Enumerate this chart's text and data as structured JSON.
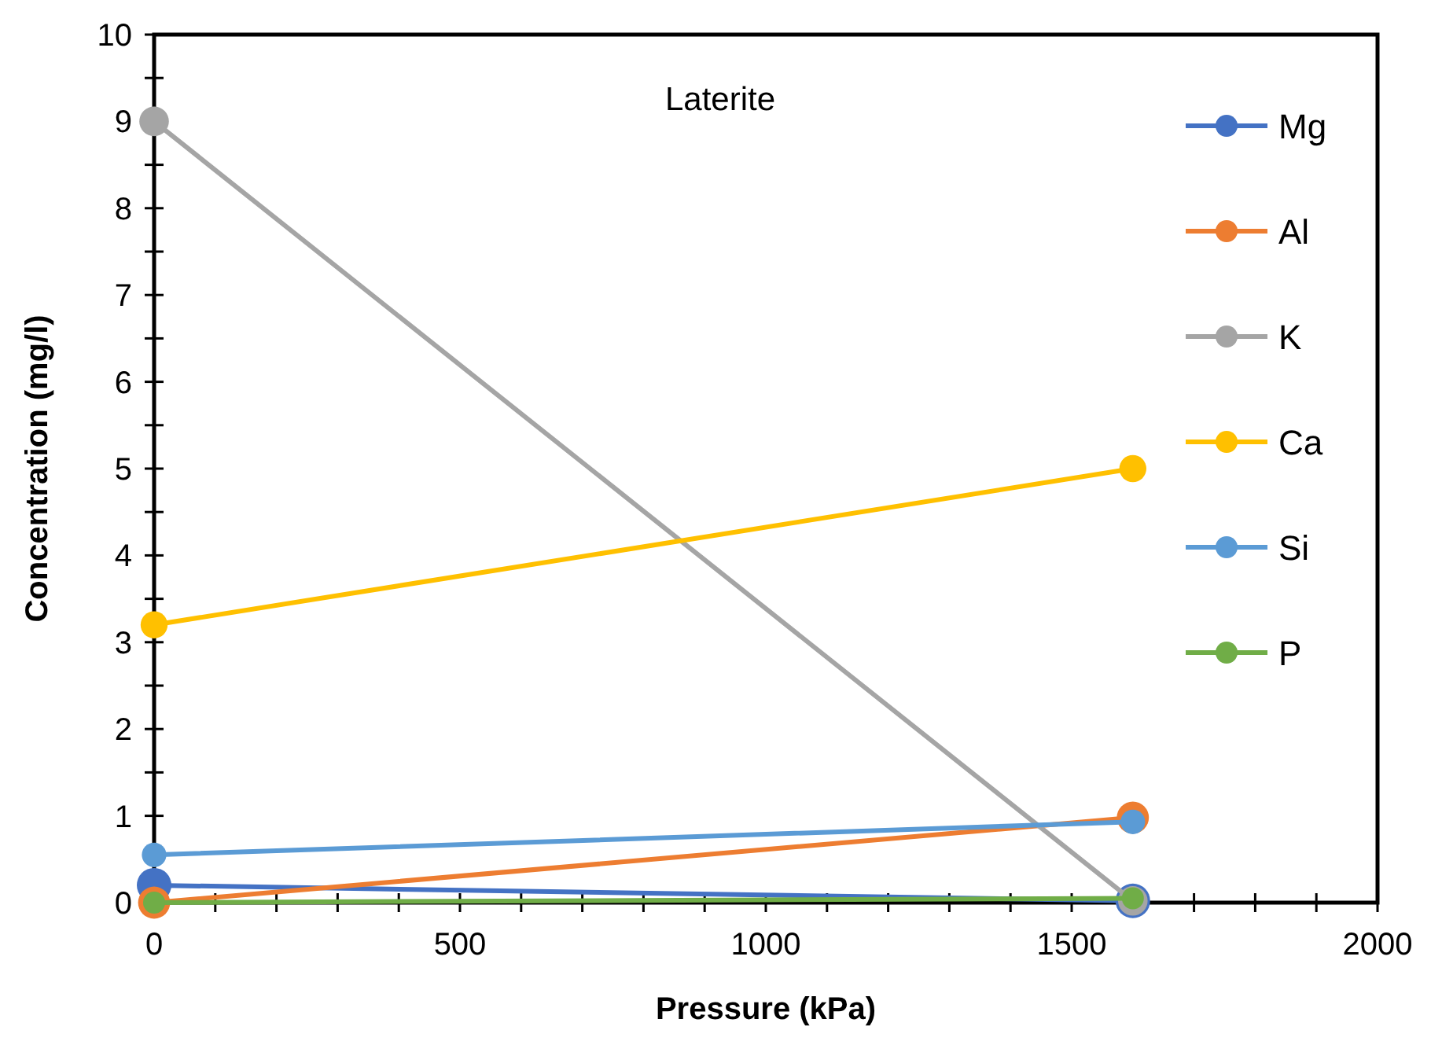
{
  "chart_data": {
    "type": "line",
    "title": "Laterite",
    "xlabel": "Pressure (kPa)",
    "ylabel": "Concentration (mg/l)",
    "x": [
      0,
      1600
    ],
    "series": [
      {
        "name": "Mg",
        "color": "#4472c4",
        "values": [
          0.2,
          0.02
        ]
      },
      {
        "name": "Al",
        "color": "#ed7d31",
        "values": [
          0,
          0.98
        ]
      },
      {
        "name": "K",
        "color": "#a5a5a5",
        "values": [
          9,
          0.02
        ]
      },
      {
        "name": "Ca",
        "color": "#ffc000",
        "values": [
          3.2,
          5
        ]
      },
      {
        "name": "Si",
        "color": "#5b9bd5",
        "values": [
          0.55,
          0.93
        ]
      },
      {
        "name": "P",
        "color": "#70ad47",
        "values": [
          0,
          0.05
        ]
      }
    ],
    "xlim": [
      0,
      2000
    ],
    "ylim": [
      0,
      10
    ],
    "xticks": [
      0,
      {
        "value": 100,
        "label": null
      },
      {
        "value": 200,
        "label": null
      },
      {
        "value": 300,
        "label": null
      },
      {
        "value": 400,
        "label": null
      },
      500,
      {
        "value": 600,
        "label": null
      },
      {
        "value": 700,
        "label": null
      },
      {
        "value": 800,
        "label": null
      },
      {
        "value": 900,
        "label": null
      },
      1000,
      {
        "value": 1100,
        "label": null
      },
      {
        "value": 1200,
        "label": null
      },
      {
        "value": 1300,
        "label": null
      },
      {
        "value": 1400,
        "label": null
      },
      1500,
      {
        "value": 1600,
        "label": null
      },
      {
        "value": 1700,
        "label": null
      },
      {
        "value": 1800,
        "label": null
      },
      {
        "value": 1900,
        "label": null
      },
      2000
    ],
    "yticks": [
      0,
      {
        "value": 0.5,
        "label": null
      },
      1,
      {
        "value": 1.5,
        "label": null
      },
      2,
      {
        "value": 2.5,
        "label": null
      },
      3,
      {
        "value": 3.5,
        "label": null
      },
      4,
      {
        "value": 4.5,
        "label": null
      },
      5,
      {
        "value": 5.5,
        "label": null
      },
      6,
      {
        "value": 6.5,
        "label": null
      },
      7,
      {
        "value": 7.5,
        "label": null
      },
      8,
      {
        "value": 8.5,
        "label": null
      },
      9,
      {
        "value": 9.5,
        "label": null
      },
      10
    ],
    "grid": false,
    "legend": "right",
    "marker": "circle",
    "line_style": "solid"
  }
}
